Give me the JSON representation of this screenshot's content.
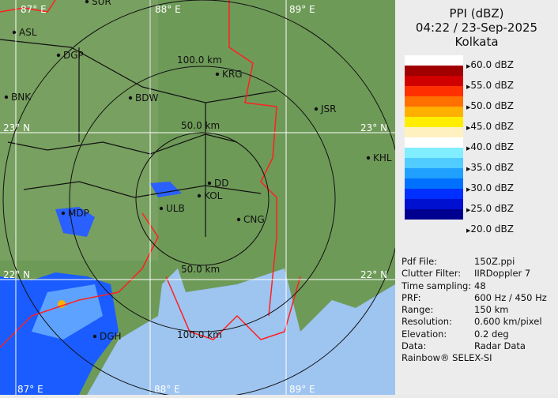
{
  "header": {
    "product": "PPI (dBZ)",
    "datetime": "04:22 / 23-Sep-2025",
    "station": "Kolkata"
  },
  "legend": {
    "labels": [
      "60.0 dBZ",
      "55.0 dBZ",
      "50.0 dBZ",
      "45.0 dBZ",
      "40.0 dBZ",
      "35.0 dBZ",
      "30.0 dBZ",
      "25.0 dBZ",
      "20.0 dBZ"
    ],
    "colors": [
      "#ffffff",
      "#a00000",
      "#d00000",
      "#ff3000",
      "#ff7000",
      "#ffb000",
      "#ffee00",
      "#fff2c0",
      "#ffffff",
      "#80eeff",
      "#50ccff",
      "#20a0ff",
      "#0070ff",
      "#0030ff",
      "#0010d0",
      "#000090"
    ]
  },
  "info": [
    {
      "key": "Pdf File:",
      "value": "150Z.ppi"
    },
    {
      "key": "Clutter Filter:",
      "value": "IIRDoppler 7"
    },
    {
      "key": "Time sampling:",
      "value": "48"
    },
    {
      "key": "PRF:",
      "value": "600 Hz / 450 Hz"
    },
    {
      "key": "Range:",
      "value": "150 km"
    },
    {
      "key": "Resolution:",
      "value": "0.600 km/pixel"
    },
    {
      "key": "Elevation:",
      "value": "0.2 deg"
    },
    {
      "key": "Data:",
      "value": "Radar Data"
    }
  ],
  "footer": "Rainbow® SELEX-SI",
  "map": {
    "grid_labels": {
      "lon87_top": "87° E",
      "lon88_top": "88° E",
      "lon89_top": "89° E",
      "lon87_bottom": "87° E",
      "lon88_bottom": "88° E",
      "lon89_bottom": "89° E",
      "lat23_left": "23° N",
      "lat23_right": "23° N",
      "lat22_left": "22° N",
      "lat22_right": "22° N"
    },
    "range_labels": {
      "r100_top": "100.0 km",
      "r50_top": "50.0 km",
      "r50_bottom": "50.0 km",
      "r100_bottom": "100.0 km"
    },
    "cities": [
      "SUR",
      "ASL",
      "DGP",
      "BNK",
      "BDW",
      "KRG",
      "JSR",
      "KHL",
      "MDP",
      "DD",
      "KOL",
      "ULB",
      "CNG",
      "DGH"
    ],
    "colors": {
      "land": "#6e9a58",
      "sea": "#9ec4f0",
      "border": "#ff2020",
      "district": "#111111",
      "grid": "#ffffff"
    }
  }
}
